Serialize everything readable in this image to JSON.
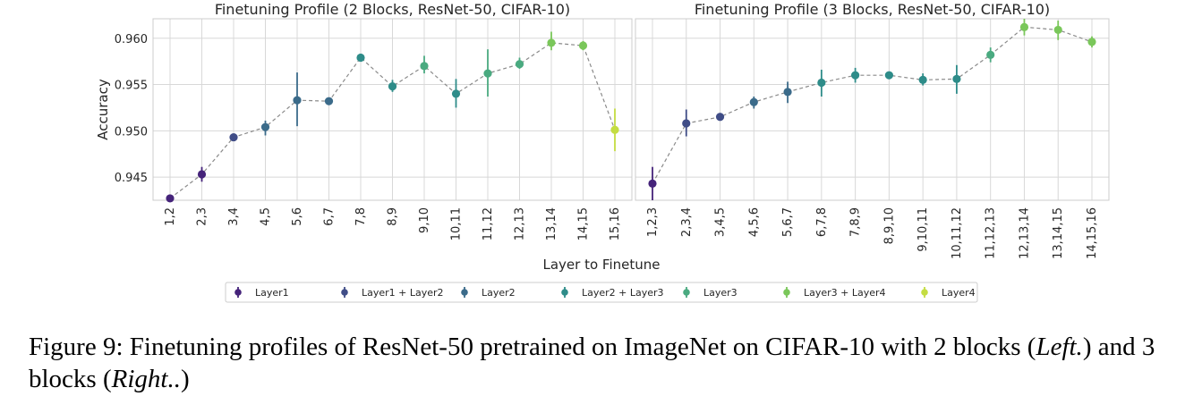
{
  "chart_data": [
    {
      "type": "line",
      "title": "Finetuning Profile (2 Blocks, ResNet-50, CIFAR-10)",
      "ylabel": "Accuracy",
      "xlabel": "Layer to Finetune",
      "ylim": [
        0.9425,
        0.9621
      ],
      "yticks": [
        "0.945",
        "0.950",
        "0.955",
        "0.960"
      ],
      "grid": true,
      "categories": [
        "1,2",
        "2,3",
        "3,4",
        "4,5",
        "5,6",
        "6,7",
        "7,8",
        "8,9",
        "9,10",
        "10,11",
        "11,12",
        "12,13",
        "13,14",
        "14,15",
        "15,16"
      ],
      "values": [
        0.9427,
        0.9453,
        0.9493,
        0.9504,
        0.9533,
        0.9532,
        0.9579,
        0.9548,
        0.957,
        0.954,
        0.9562,
        0.9572,
        0.9595,
        0.9592,
        0.9501
      ],
      "err_low": [
        0.9427,
        0.9445,
        0.9491,
        0.9495,
        0.9505,
        0.9531,
        0.9577,
        0.9542,
        0.9562,
        0.9525,
        0.9537,
        0.9567,
        0.9587,
        0.9587,
        0.9478
      ],
      "err_high": [
        0.9428,
        0.9461,
        0.9495,
        0.9511,
        0.9563,
        0.9533,
        0.9581,
        0.9555,
        0.9581,
        0.9556,
        0.9588,
        0.9579,
        0.9607,
        0.9597,
        0.9524
      ],
      "layer_group": [
        0,
        0,
        1,
        2,
        2,
        2,
        3,
        3,
        4,
        3,
        4,
        4,
        5,
        5,
        6
      ]
    },
    {
      "type": "line",
      "title": "Finetuning Profile (3 Blocks, ResNet-50, CIFAR-10)",
      "ylabel": "",
      "xlabel": "Layer to Finetune",
      "ylim": [
        0.9425,
        0.9621
      ],
      "grid": true,
      "categories": [
        "1,2,3",
        "2,3,4",
        "3,4,5",
        "4,5,6",
        "5,6,7",
        "6,7,8",
        "7,8,9",
        "8,9,10",
        "9,10,11",
        "10,11,12",
        "11,12,13",
        "12,13,14",
        "13,14,15",
        "14,15,16"
      ],
      "values": [
        0.9443,
        0.9508,
        0.9515,
        0.9531,
        0.9542,
        0.9552,
        0.956,
        0.956,
        0.9555,
        0.9556,
        0.9582,
        0.9612,
        0.9609,
        0.9596
      ],
      "err_low": [
        0.9425,
        0.9494,
        0.9511,
        0.9524,
        0.953,
        0.9537,
        0.9552,
        0.9557,
        0.9549,
        0.954,
        0.9574,
        0.9603,
        0.9598,
        0.959
      ],
      "err_high": [
        0.9461,
        0.9523,
        0.9519,
        0.9537,
        0.9553,
        0.9566,
        0.9568,
        0.9563,
        0.9562,
        0.9571,
        0.959,
        0.9621,
        0.9619,
        0.9602
      ],
      "layer_group": [
        0,
        1,
        1,
        2,
        2,
        3,
        3,
        3,
        3,
        3,
        4,
        5,
        5,
        5
      ]
    }
  ],
  "legend": {
    "placement": "bottom-center",
    "entries": [
      "Layer1",
      "Layer1 + Layer2",
      "Layer2",
      "Layer2 + Layer3",
      "Layer3",
      "Layer3 + Layer4",
      "Layer4"
    ],
    "colors": [
      "#45237a",
      "#404d87",
      "#3b6b8a",
      "#2e8c89",
      "#4aaa80",
      "#7ac75a",
      "#c4dd42"
    ]
  },
  "colors": {
    "line": "#8a8a8a",
    "grid": "#d8d8d8",
    "frame": "#cccccc"
  },
  "caption": {
    "main": "Figure 9: Finetuning profiles of ResNet-50 pretrained on ImageNet on CIFAR-10 with 2 blocks (",
    "left": "Left.",
    "middle": ") and 3 blocks (",
    "right": "Right..",
    "end": ")"
  }
}
